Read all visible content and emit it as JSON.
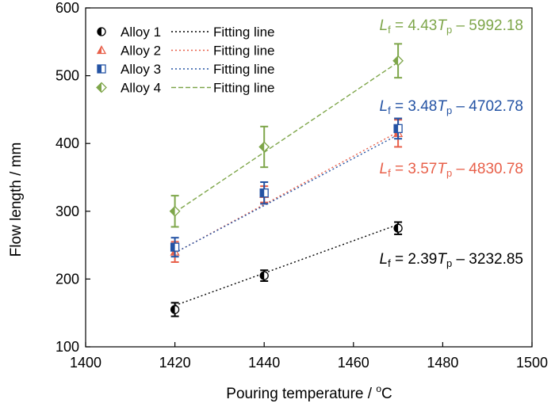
{
  "chart_data": {
    "type": "scatter",
    "xlabel": "Pouring temperature / ",
    "xlabel_unit_sup": "o",
    "xlabel_unit": "C",
    "ylabel": "Flow length / mm",
    "xlim": [
      1400,
      1500
    ],
    "ylim": [
      100,
      600
    ],
    "xticks": [
      "1400",
      "1420",
      "1440",
      "1460",
      "1480",
      "1500"
    ],
    "yticks": [
      "100",
      "200",
      "300",
      "400",
      "500",
      "600"
    ],
    "grid": false,
    "legend_position": "top-left",
    "legend_fit_label": "Fitting line",
    "series": [
      {
        "name": "Alloy 1",
        "color": "#000000",
        "marker": "half-circle",
        "x": [
          1420,
          1440,
          1470
        ],
        "y": [
          155,
          205,
          275
        ],
        "err": [
          10,
          8,
          9
        ],
        "fit": {
          "slope": 2.39,
          "intercept": -3232.85
        },
        "equation": {
          "coef": "2.39",
          "const": "– 3232.85"
        }
      },
      {
        "name": "Alloy 2",
        "color": "#e8604a",
        "marker": "half-triangle",
        "x": [
          1420,
          1440,
          1470
        ],
        "y": [
          240,
          325,
          415
        ],
        "err": [
          15,
          12,
          20
        ],
        "fit": {
          "slope": 3.57,
          "intercept": -4830.78
        },
        "equation": {
          "coef": "3.57",
          "const": "– 4830.78"
        }
      },
      {
        "name": "Alloy 3",
        "color": "#2453a4",
        "marker": "half-square",
        "x": [
          1420,
          1440,
          1470
        ],
        "y": [
          247,
          327,
          422
        ],
        "err": [
          14,
          16,
          15
        ],
        "fit": {
          "slope": 3.48,
          "intercept": -4702.78
        },
        "equation": {
          "coef": "3.48",
          "const": "– 4702.78"
        }
      },
      {
        "name": "Alloy 4",
        "color": "#7ea64a",
        "marker": "half-diamond",
        "x": [
          1420,
          1440,
          1470
        ],
        "y": [
          300,
          395,
          522
        ],
        "err": [
          23,
          30,
          25
        ],
        "fit": {
          "slope": 4.43,
          "intercept": -5992.18
        },
        "equation": {
          "coef": "4.43",
          "const": "– 5992.18"
        }
      }
    ],
    "equation_parts": {
      "lhs": "L",
      "lhs_sub": "f",
      "eq": " = ",
      "var": "T",
      "var_sub": "p"
    }
  }
}
